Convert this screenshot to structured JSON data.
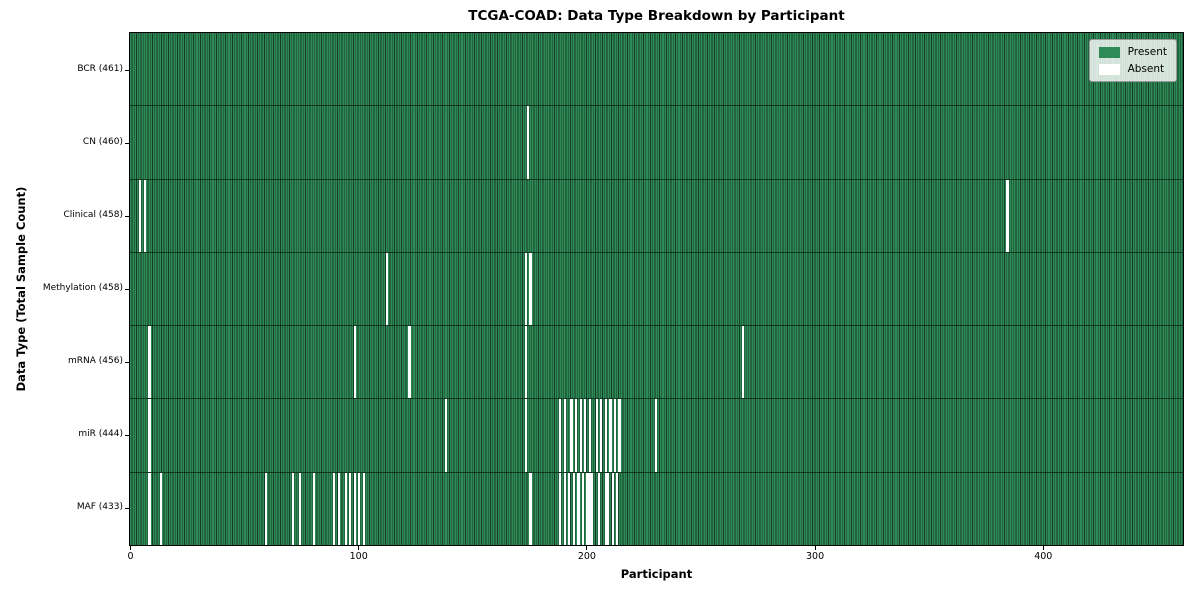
{
  "title": "TCGA-COAD: Data Type Breakdown by Participant",
  "legend": {
    "present_label": "Present",
    "absent_label": "Absent"
  },
  "colors": {
    "present": "#2e8b57",
    "present_edge": "#143c26",
    "absent": "#ffffff"
  },
  "chart_data": {
    "type": "heatmap",
    "title": "TCGA-COAD: Data Type Breakdown by Participant",
    "xlabel": "Participant",
    "ylabel": "Data Type (Total Sample Count)",
    "x_ticks": [
      0,
      100,
      200,
      300,
      400
    ],
    "xlim": [
      0,
      461
    ],
    "n_participants": 461,
    "grid": false,
    "legend_position": "upper right",
    "legend_entries": [
      {
        "label": "Present",
        "color": "#2e8b57"
      },
      {
        "label": "Absent",
        "color": "#ffffff"
      }
    ],
    "cell_values": {
      "present": 1,
      "absent": 0
    },
    "rows": [
      {
        "label": "BCR (461)",
        "data_type": "BCR",
        "present_count": 461,
        "absent_participants": []
      },
      {
        "label": "CN (460)",
        "data_type": "CN",
        "present_count": 460,
        "absent_participants": [
          174
        ]
      },
      {
        "label": "Clinical (458)",
        "data_type": "Clinical",
        "present_count": 458,
        "absent_participants": [
          4,
          6,
          384
        ]
      },
      {
        "label": "Methylation (458)",
        "data_type": "Methylation",
        "present_count": 458,
        "absent_participants": [
          112,
          173,
          175
        ]
      },
      {
        "label": "mRNA (456)",
        "data_type": "mRNA",
        "present_count": 456,
        "absent_participants": [
          8,
          98,
          122,
          173,
          268
        ]
      },
      {
        "label": "miR (444)",
        "data_type": "miR",
        "present_count": 444,
        "absent_participants": [
          8,
          138,
          173,
          188,
          190,
          193,
          195,
          197,
          199,
          201,
          204,
          206,
          208,
          210,
          212,
          214,
          230
        ]
      },
      {
        "label": "MAF (433)",
        "data_type": "MAF",
        "present_count": 433,
        "absent_participants": [
          8,
          13,
          59,
          71,
          74,
          80,
          89,
          91,
          94,
          96,
          98,
          100,
          102,
          175,
          188,
          190,
          192,
          194,
          196,
          198,
          200,
          201,
          202,
          205,
          208,
          209,
          211,
          213
        ]
      }
    ]
  }
}
